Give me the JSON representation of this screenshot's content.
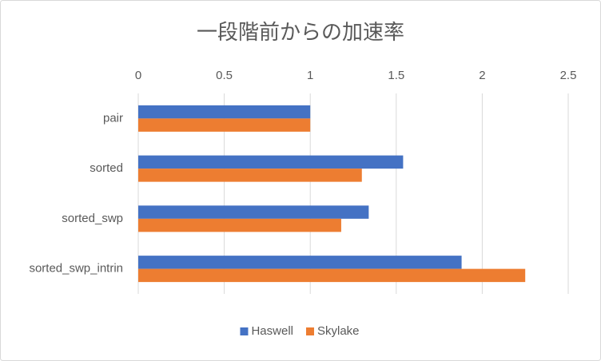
{
  "chart_data": {
    "type": "bar",
    "orientation": "horizontal",
    "title": "一段階前からの加速率",
    "categories": [
      "pair",
      "sorted",
      "sorted_swp",
      "sorted_swp_intrin"
    ],
    "series": [
      {
        "name": "Haswell",
        "color": "#4472c4",
        "values": [
          1.0,
          1.54,
          1.34,
          1.88
        ]
      },
      {
        "name": "Skylake",
        "color": "#ed7d31",
        "values": [
          1.0,
          1.3,
          1.18,
          2.25
        ]
      }
    ],
    "xlim": [
      0,
      2.5
    ],
    "xticks": [
      0,
      0.5,
      1,
      1.5,
      2,
      2.5
    ],
    "grid": true,
    "legend": "bottom"
  }
}
